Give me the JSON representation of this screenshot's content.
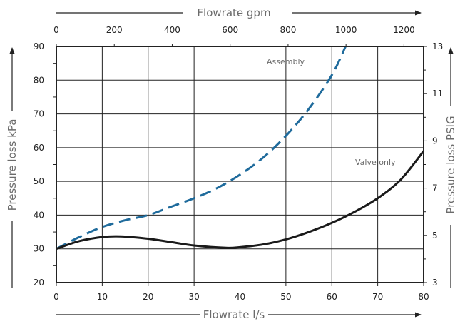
{
  "chart_data": {
    "type": "line",
    "xlabel_bottom": "Flowrate l/s",
    "xlabel_top": "Flowrate gpm",
    "ylabel_left": "Pressure loss kPa",
    "ylabel_right": "Pressure loss PSIG",
    "xlim": [
      0,
      80
    ],
    "ylim": [
      20,
      90
    ],
    "x_top_lim": [
      0,
      1268
    ],
    "y_right_lim": [
      3,
      13
    ],
    "x_ticks": [
      "0",
      "10",
      "20",
      "30",
      "40",
      "50",
      "60",
      "70",
      "80"
    ],
    "y_ticks": [
      "20",
      "30",
      "40",
      "50",
      "60",
      "70",
      "80",
      "90"
    ],
    "x_top_ticks": [
      "0",
      "200",
      "400",
      "600",
      "800",
      "1000",
      "1200"
    ],
    "y_right_ticks": [
      "3",
      "5",
      "7",
      "9",
      "11",
      "13"
    ],
    "grid": true,
    "series": [
      {
        "name": "Assembly",
        "color": "#1f6b9c",
        "style": "dashed",
        "x": [
          0,
          5,
          10,
          15,
          20,
          25,
          30,
          35,
          40,
          45,
          50,
          55,
          60,
          63
        ],
        "y": [
          30,
          33.5,
          36.5,
          38.5,
          40,
          42.5,
          45,
          48,
          52,
          57,
          63.5,
          71.5,
          81.5,
          90
        ]
      },
      {
        "name": "Valve only",
        "color": "#1a1a1a",
        "style": "solid",
        "x": [
          0,
          5,
          10,
          14,
          20,
          25,
          30,
          37,
          40,
          45,
          50,
          55,
          60,
          65,
          70,
          75,
          80
        ],
        "y": [
          30,
          32.3,
          33.5,
          33.7,
          33,
          32,
          31,
          30.3,
          30.5,
          31.3,
          32.8,
          35,
          37.7,
          41,
          45,
          50.5,
          59
        ]
      }
    ]
  }
}
